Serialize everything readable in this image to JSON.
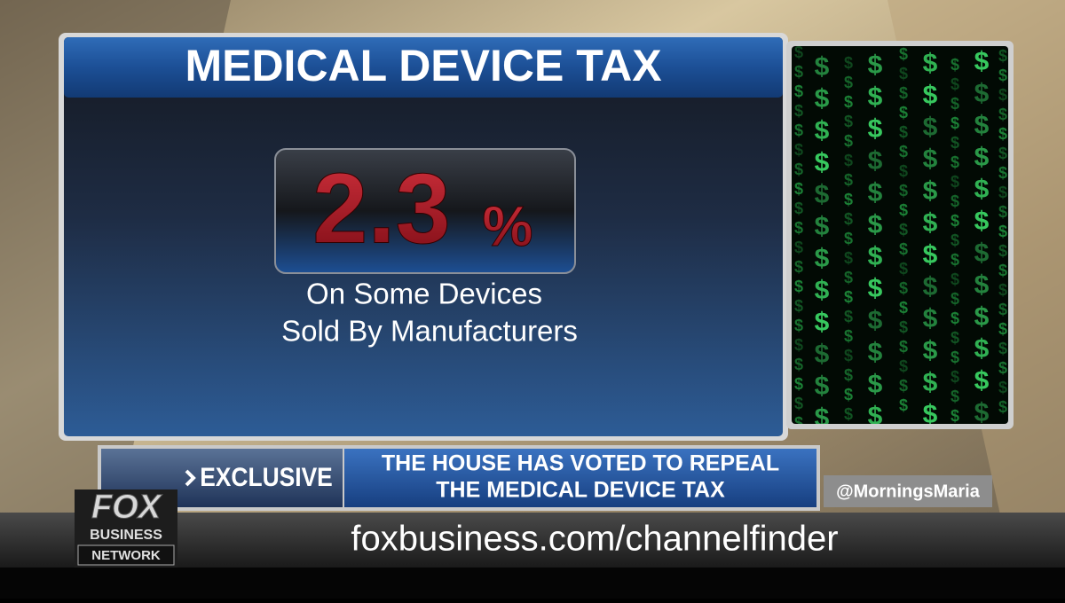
{
  "graphic": {
    "title": "MEDICAL DEVICE TAX",
    "stat": {
      "value": "2.3",
      "unit": "%"
    },
    "caption": [
      "On Some Devices",
      "Sold By Manufacturers"
    ],
    "matrix_symbol": "$"
  },
  "lower_third": {
    "tag": "EXCLUSIVE",
    "headline": [
      "THE HOUSE HAS VOTED TO REPEAL",
      "THE MEDICAL DEVICE TAX"
    ],
    "handle": "@MorningsMaria"
  },
  "logo": {
    "line1": "FOX",
    "line2": "BUSINESS",
    "line3": "NETWORK"
  },
  "ticker": {
    "url": "foxbusiness.com/channelfinder"
  }
}
